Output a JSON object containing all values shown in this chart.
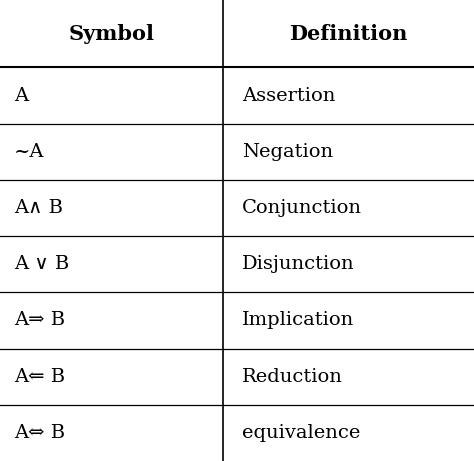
{
  "headers": [
    "Symbol",
    "Definition"
  ],
  "rows": [
    [
      "A",
      "Assertion"
    ],
    [
      "~A",
      "Negation"
    ],
    [
      "A∧ B",
      "Conjunction"
    ],
    [
      "A ∨ B",
      "Disjunction"
    ],
    [
      "A⇒ B",
      "Implication"
    ],
    [
      "A⇐ B",
      "Reduction"
    ],
    [
      "A⇔ B",
      "equivalence"
    ]
  ],
  "col_split": 0.47,
  "header_fontsize": 15,
  "row_fontsize": 14,
  "background_color": "#ffffff",
  "line_color": "#000000",
  "text_color": "#000000",
  "fig_width": 4.74,
  "fig_height": 4.61
}
